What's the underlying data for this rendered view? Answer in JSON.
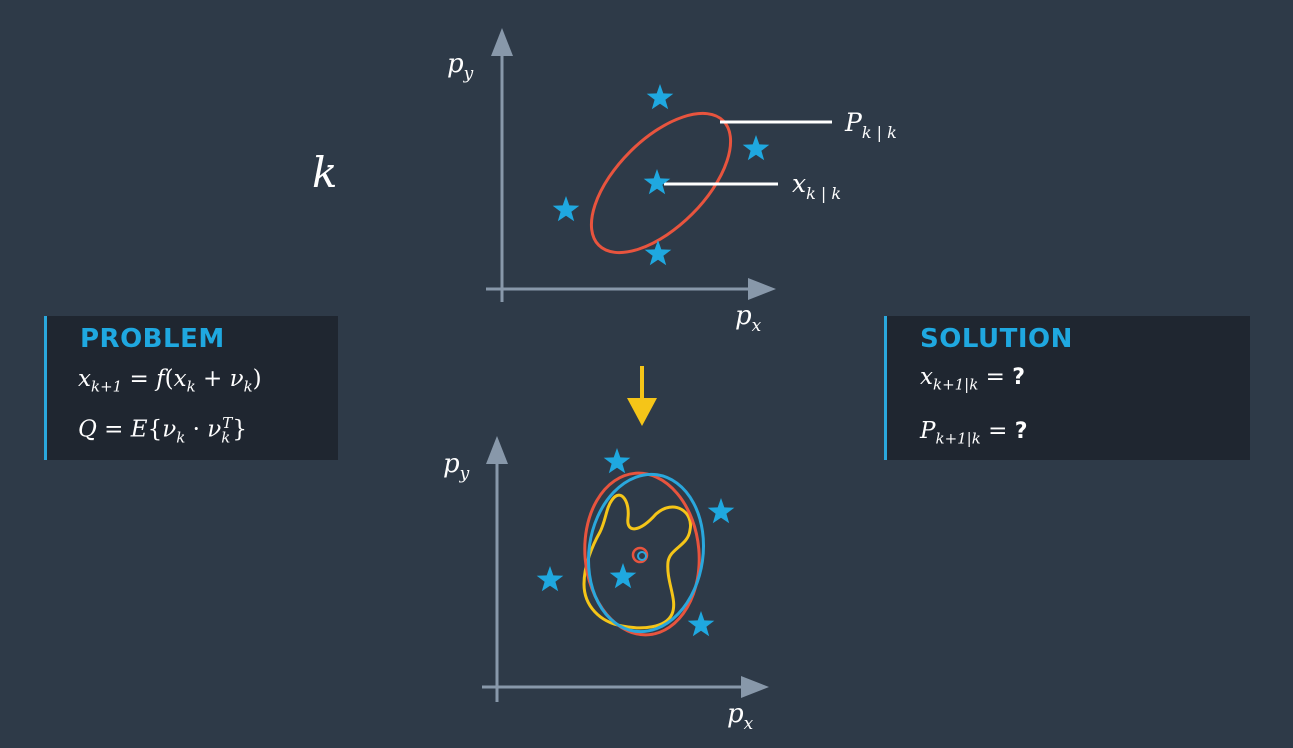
{
  "time_label": "k",
  "top_plot": {
    "x_axis_label": "p_x",
    "y_axis_label": "p_y",
    "callouts": {
      "covariance": "P_{k|k}",
      "mean": "x_{k|k}"
    }
  },
  "bottom_plot": {
    "x_axis_label": "p_x",
    "y_axis_label": "p_y"
  },
  "problem": {
    "title": "PROBLEM",
    "equation_1": "x_{k+1} = f(x_k + ν_k)",
    "equation_2": "Q = E{ν_k · ν_k^T}"
  },
  "solution": {
    "title": "SOLUTION",
    "equation_1": "x_{k+1|k} = ?",
    "equation_2": "P_{k+1|k} = ?",
    "unknown_marker": "?"
  },
  "colors": {
    "background": "#2e3a48",
    "axis": "#8898aa",
    "star": "#1fa8e0",
    "covariance_ellipse": "#e8543e",
    "blue_ellipse": "#2aa7dc",
    "yellow_contour": "#f5c518",
    "arrow": "#f5c518",
    "panel_bg": "#1f2630",
    "panel_title": "#1fa8e0"
  },
  "icons": {
    "sigma_point": "star-icon",
    "transition_arrow": "down-arrow-icon"
  }
}
